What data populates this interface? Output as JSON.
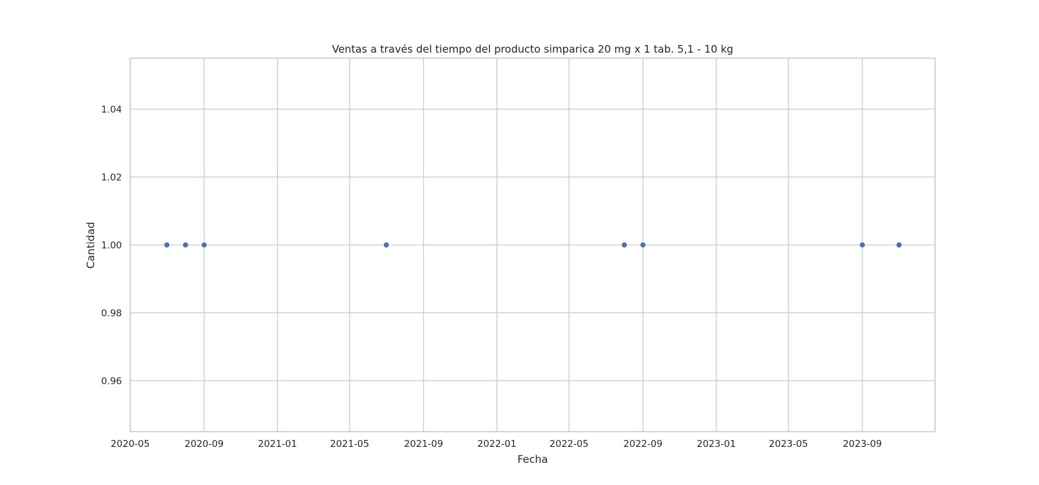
{
  "chart_data": {
    "type": "scatter",
    "title": "Ventas a través del tiempo del producto simparica 20 mg x 1 tab. 5,1 - 10 kg",
    "xlabel": "Fecha",
    "ylabel": "Cantidad",
    "x_type": "date",
    "xlim": [
      "2020-05-01",
      "2023-12-31"
    ],
    "ylim": [
      0.945,
      1.055
    ],
    "x_ticks": [
      "2020-05",
      "2020-09",
      "2021-01",
      "2021-05",
      "2021-09",
      "2022-01",
      "2022-05",
      "2022-09",
      "2023-01",
      "2023-05",
      "2023-09"
    ],
    "y_ticks": [
      0.96,
      0.98,
      1.0,
      1.02,
      1.04
    ],
    "y_tick_labels": [
      "0.96",
      "0.98",
      "1.00",
      "1.02",
      "1.04"
    ],
    "grid": true,
    "point_color": "#4c72b0",
    "points": [
      {
        "x": "2020-07-01",
        "y": 1.0
      },
      {
        "x": "2020-08-01",
        "y": 1.0
      },
      {
        "x": "2020-09-01",
        "y": 1.0
      },
      {
        "x": "2021-07-01",
        "y": 1.0
      },
      {
        "x": "2022-08-01",
        "y": 1.0
      },
      {
        "x": "2022-09-01",
        "y": 1.0
      },
      {
        "x": "2023-09-01",
        "y": 1.0
      },
      {
        "x": "2023-11-01",
        "y": 1.0
      }
    ]
  }
}
